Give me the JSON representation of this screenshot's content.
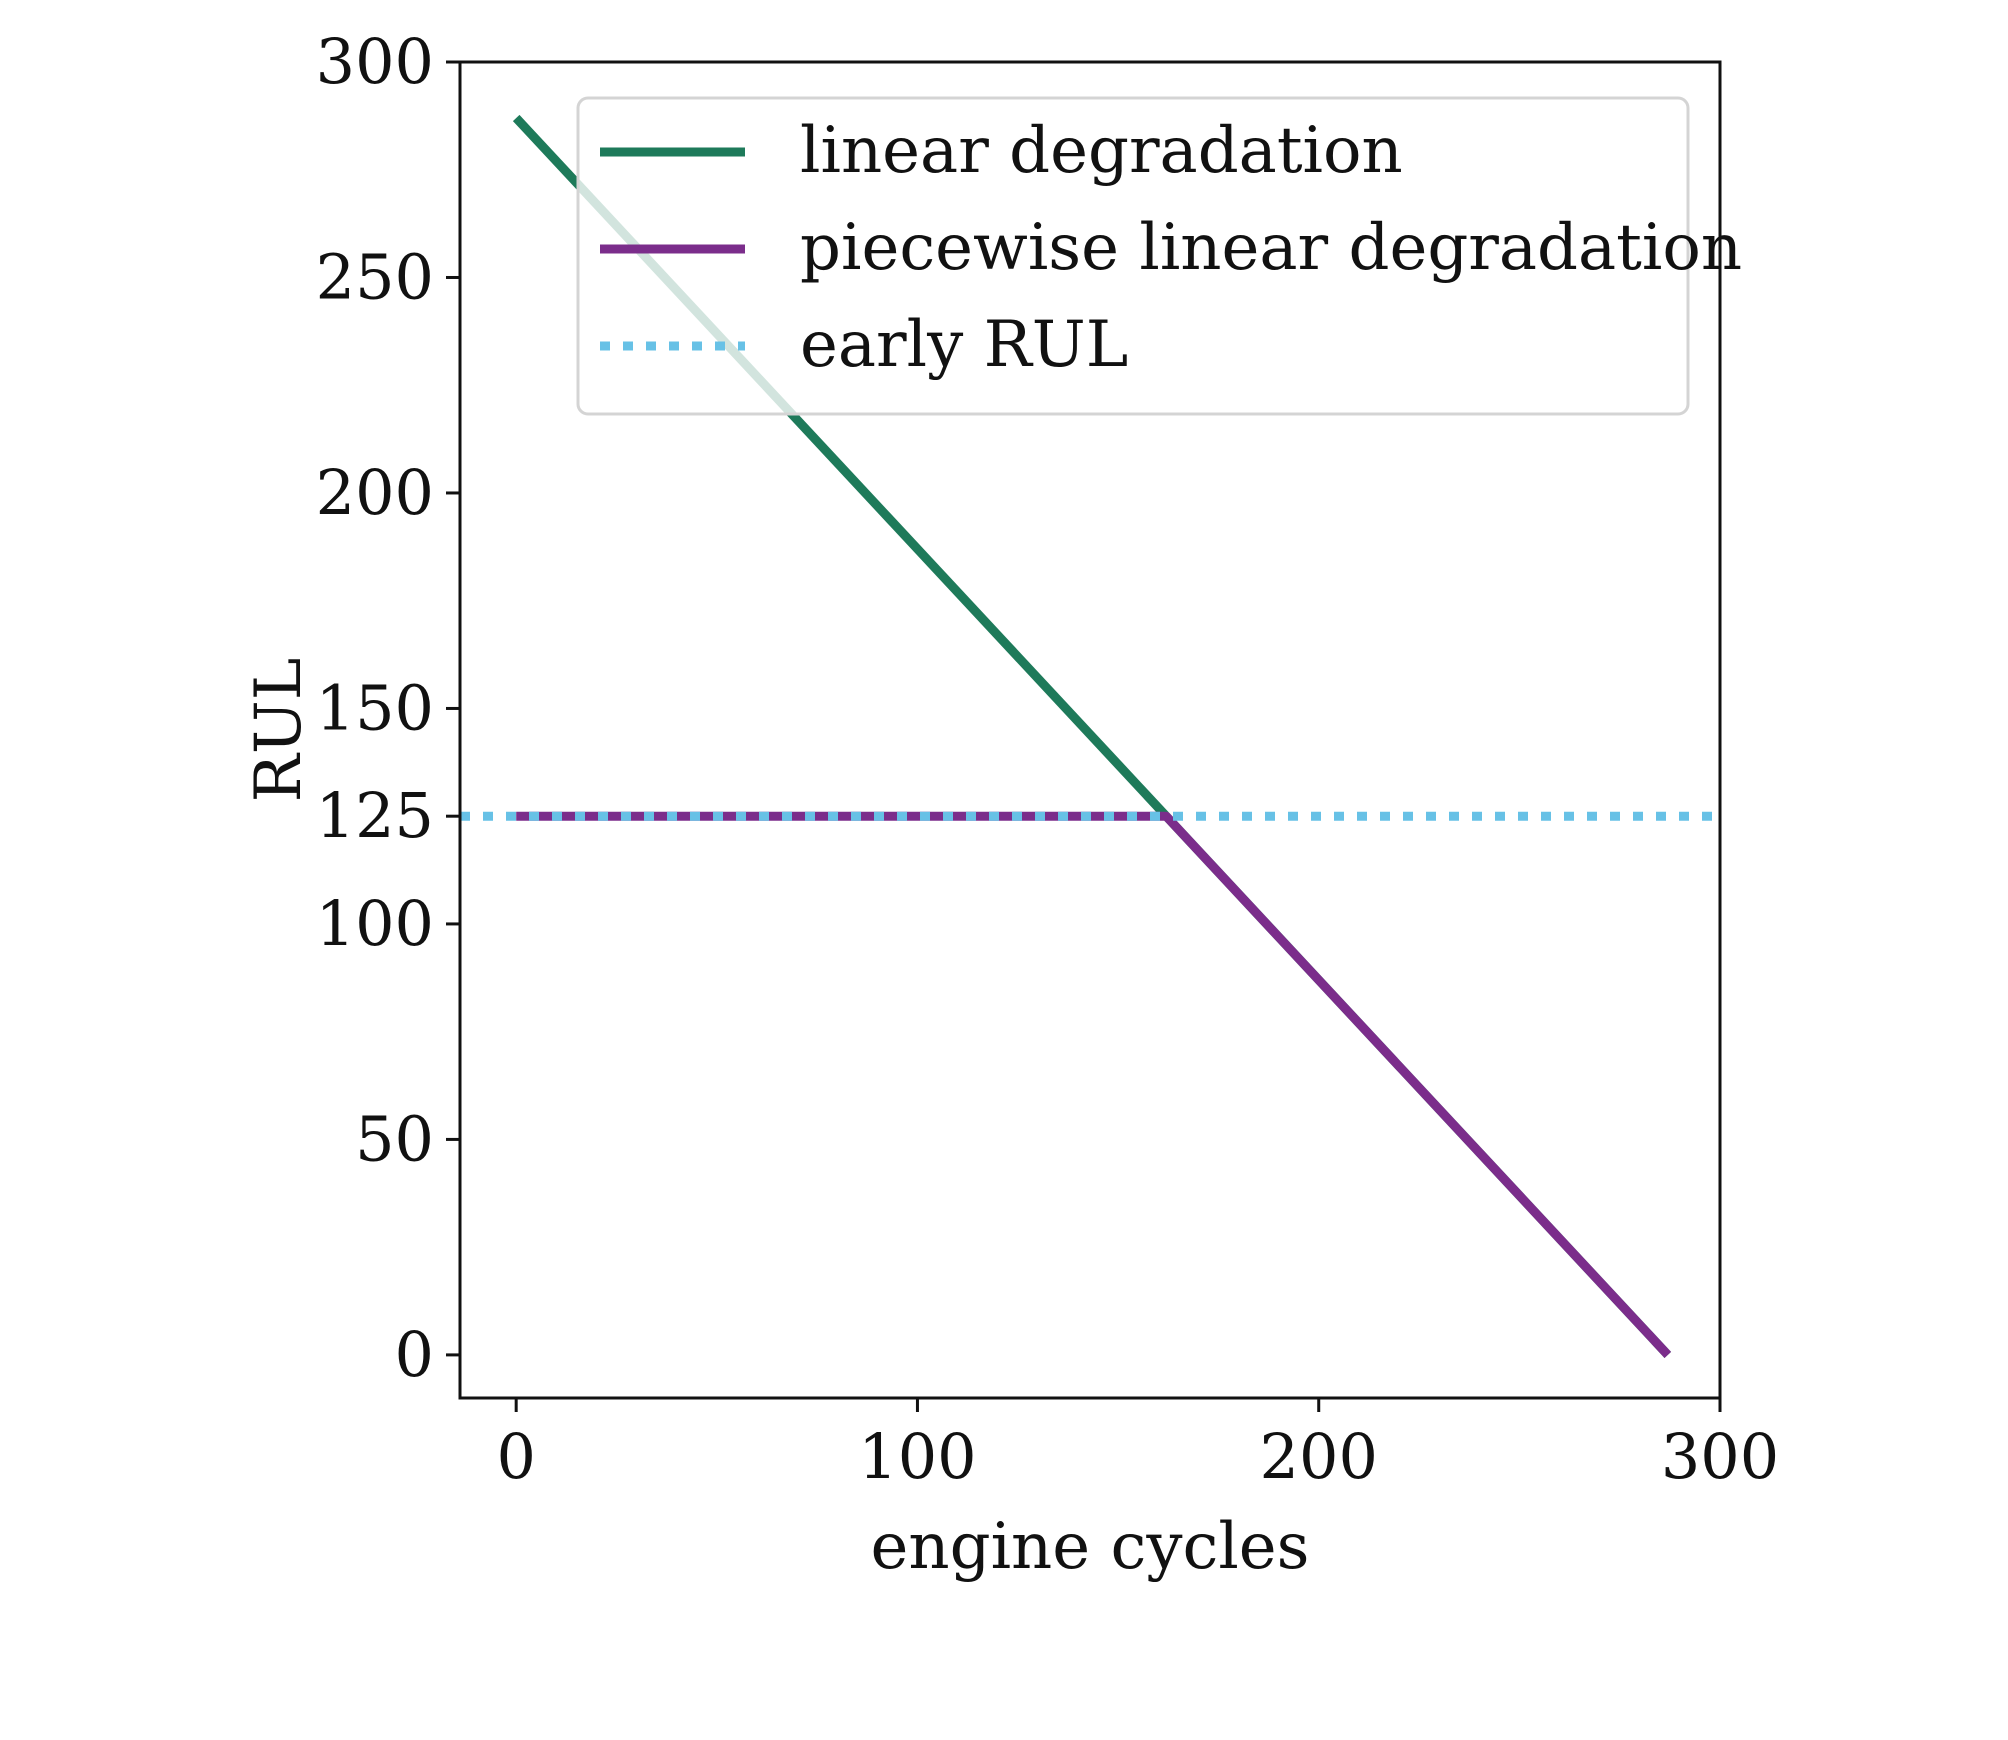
{
  "chart_data": {
    "type": "line",
    "title": "",
    "xlabel": "engine cycles",
    "ylabel": "RUL",
    "xlim": [
      -14,
      300
    ],
    "ylim": [
      -10,
      300
    ],
    "xticks": [
      0,
      100,
      200,
      300
    ],
    "yticks": [
      0,
      50,
      100,
      125,
      150,
      200,
      250,
      300
    ],
    "grid": false,
    "legend_position": "top-right",
    "series": [
      {
        "name": "linear degradation",
        "color": "#1e7a5a",
        "style": "solid",
        "x": [
          0,
          287
        ],
        "y": [
          287,
          0
        ]
      },
      {
        "name": "piecewise linear degradation",
        "color": "#7b2d8b",
        "style": "solid",
        "x": [
          0,
          162,
          287
        ],
        "y": [
          125,
          125,
          0
        ]
      },
      {
        "name": "early RUL",
        "color": "#67c1e6",
        "style": "dotted",
        "x": [
          -14,
          300
        ],
        "y": [
          125,
          125
        ]
      }
    ]
  }
}
